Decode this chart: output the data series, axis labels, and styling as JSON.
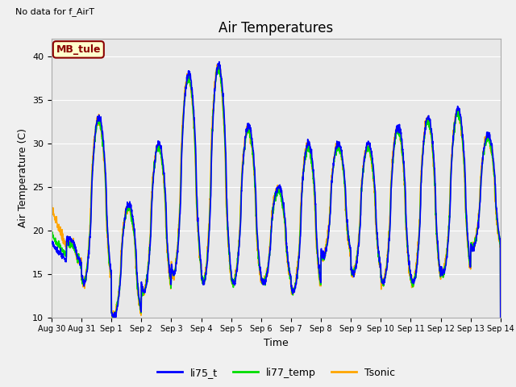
{
  "title": "Air Temperatures",
  "xlabel": "Time",
  "ylabel": "Air Temperature (C)",
  "no_data_text": "No data for f_AirT",
  "legend_label_text": "MB_tule",
  "ylim": [
    10,
    42
  ],
  "yticks": [
    10,
    15,
    20,
    25,
    30,
    35,
    40
  ],
  "xlim_start": 0,
  "xlim_end": 15,
  "xtick_labels": [
    "Aug 30",
    "Aug 31",
    "Sep 1",
    "Sep 2",
    "Sep 3",
    "Sep 4",
    "Sep 5",
    "Sep 6",
    "Sep 7",
    "Sep 8",
    "Sep 9",
    "Sep 10",
    "Sep 11",
    "Sep 12",
    "Sep 13",
    "Sep 14"
  ],
  "color_li75": "#0000ff",
  "color_li77": "#00dd00",
  "color_tsonic": "#ffa500",
  "fig_bg_color": "#f0f0f0",
  "ax_bg_color": "#e8e8e8",
  "line_width": 1.2,
  "title_fontsize": 12,
  "axis_label_fontsize": 9,
  "tick_fontsize": 8,
  "day_maxs_li75": [
    19,
    33,
    23,
    30,
    38,
    39,
    32,
    25,
    30,
    30,
    30,
    32,
    33,
    34,
    31
  ],
  "day_mins_li75": [
    16,
    14,
    10,
    13,
    15,
    14,
    14,
    14,
    13,
    17,
    15,
    14,
    14,
    15,
    18
  ],
  "peak_hour": 14,
  "trough_hour": 6
}
